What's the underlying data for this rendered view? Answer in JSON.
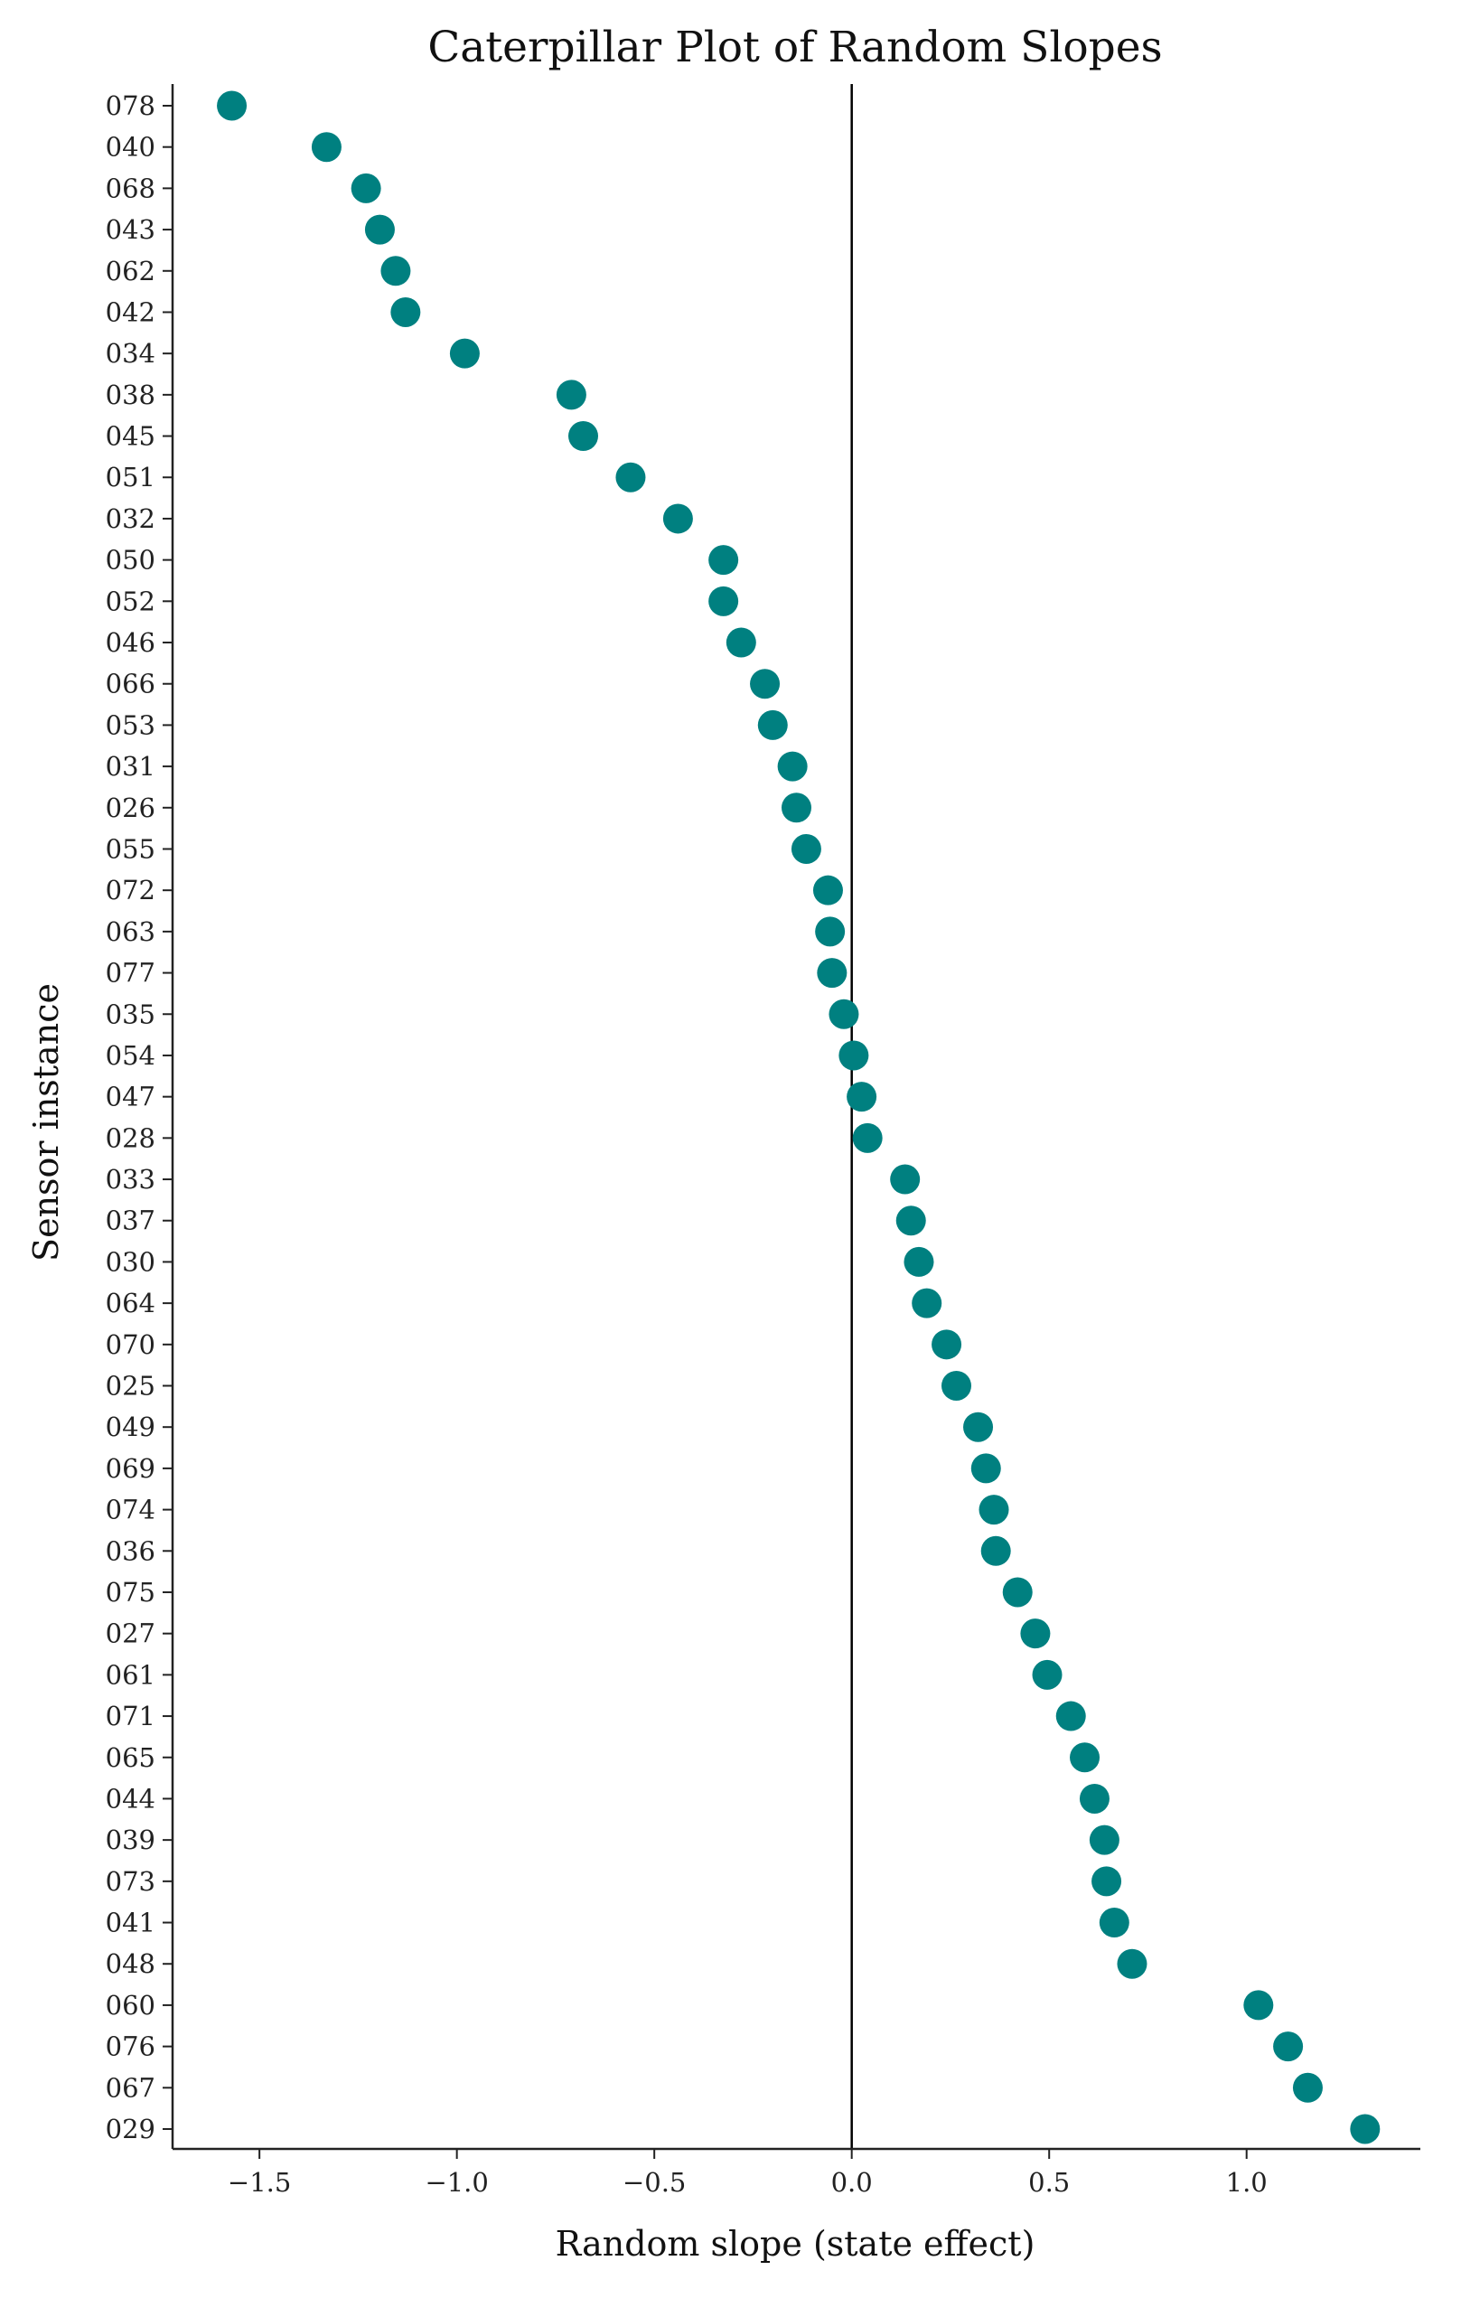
{
  "chart_data": {
    "type": "scatter",
    "title": "Caterpillar Plot of Random Slopes",
    "xlabel": "Random slope (state effect)",
    "ylabel": "Sensor instance",
    "xlim": [
      -1.72,
      1.44
    ],
    "xticks": [
      -1.5,
      -1.0,
      -0.5,
      0.0,
      0.5,
      1.0
    ],
    "xtick_labels": [
      "−1.5",
      "−1.0",
      "−0.5",
      "0.0",
      "0.5",
      "1.0"
    ],
    "reference_line_x": 0.0,
    "marker_color": "#008080",
    "grid": false,
    "legend": "none",
    "categories": [
      "078",
      "040",
      "068",
      "043",
      "062",
      "042",
      "034",
      "038",
      "045",
      "051",
      "032",
      "050",
      "052",
      "046",
      "066",
      "053",
      "031",
      "026",
      "055",
      "072",
      "063",
      "077",
      "035",
      "054",
      "047",
      "028",
      "033",
      "037",
      "030",
      "064",
      "070",
      "025",
      "049",
      "069",
      "074",
      "036",
      "075",
      "027",
      "061",
      "071",
      "065",
      "044",
      "039",
      "073",
      "041",
      "048",
      "060",
      "076",
      "067",
      "029"
    ],
    "values": [
      -1.57,
      -1.33,
      -1.23,
      -1.195,
      -1.155,
      -1.13,
      -0.98,
      -0.71,
      -0.68,
      -0.56,
      -0.44,
      -0.325,
      -0.325,
      -0.28,
      -0.22,
      -0.2,
      -0.15,
      -0.14,
      -0.115,
      -0.06,
      -0.055,
      -0.05,
      -0.02,
      0.005,
      0.025,
      0.04,
      0.135,
      0.15,
      0.17,
      0.19,
      0.24,
      0.265,
      0.32,
      0.34,
      0.36,
      0.365,
      0.42,
      0.465,
      0.495,
      0.555,
      0.59,
      0.615,
      0.64,
      0.645,
      0.665,
      0.71,
      1.03,
      1.105,
      1.155,
      1.3
    ]
  }
}
